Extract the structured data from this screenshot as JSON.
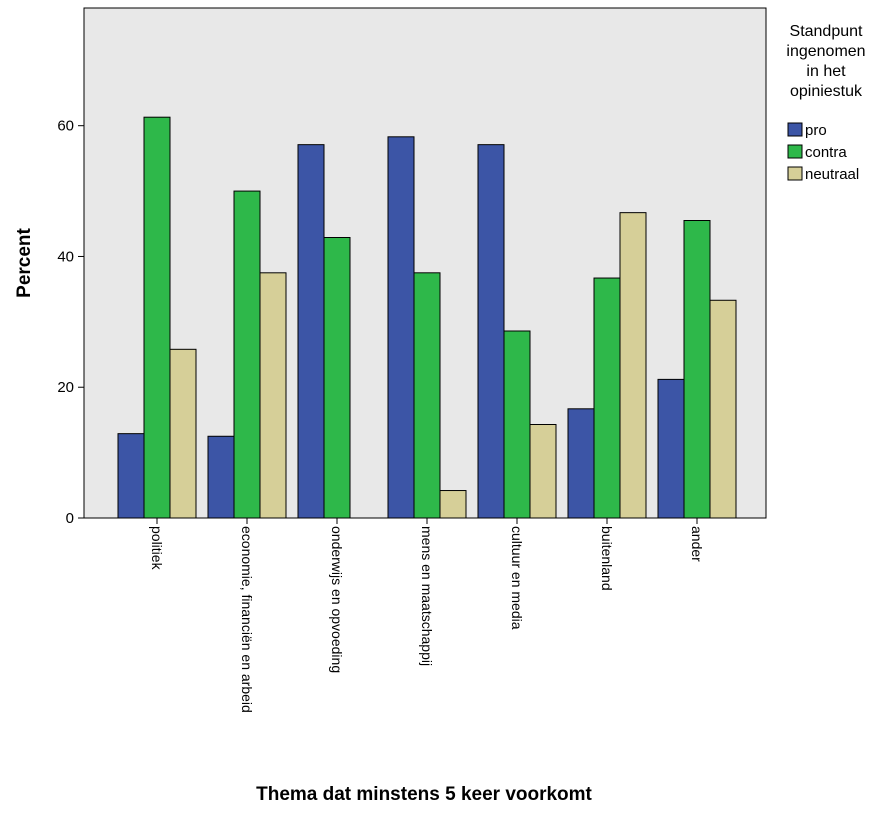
{
  "chart_data": {
    "type": "bar",
    "xlabel": "Thema dat minstens 5 keer voorkomt",
    "ylabel": "Percent",
    "categories": [
      "politiek",
      "economie, financiën en arbeid",
      "onderwijs en opvoeding",
      "mens en maatschappij",
      "cultuur en media",
      "buitenland",
      "ander"
    ],
    "series": [
      {
        "name": "pro",
        "color": "#3c55a6",
        "values": [
          12.9,
          12.5,
          57.1,
          58.3,
          57.1,
          16.7,
          21.2
        ]
      },
      {
        "name": "contra",
        "color": "#2eb84a",
        "values": [
          61.3,
          50.0,
          42.9,
          37.5,
          28.6,
          36.7,
          45.5
        ]
      },
      {
        "name": "neutraal",
        "color": "#d6cf98",
        "values": [
          25.8,
          37.5,
          0,
          4.2,
          14.3,
          46.7,
          33.3
        ]
      }
    ],
    "ylim": [
      0,
      78
    ],
    "yticks": [
      0,
      20,
      40,
      60
    ],
    "grid": false,
    "plot_background": "#e8e8e8",
    "legend": {
      "title_lines": [
        "Standpunt",
        "ingenomen",
        "in het",
        "opiniestuk"
      ],
      "position": "right"
    }
  }
}
